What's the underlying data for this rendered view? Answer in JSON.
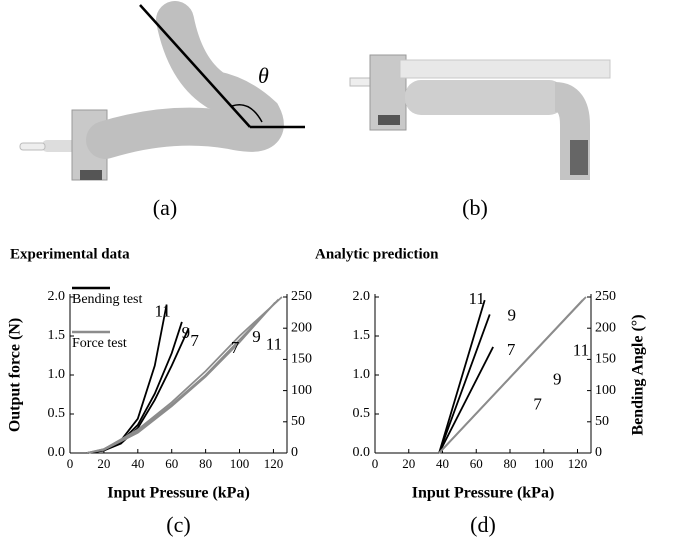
{
  "photos": [
    {
      "label": "(a)"
    },
    {
      "label": "(b)"
    }
  ],
  "theta": "θ",
  "chart_data": [
    {
      "type": "line",
      "title": "Experimental data",
      "panel_label": "(c)",
      "xlabel": "Input Pressure (kPa)",
      "ylabel": "Output force (N)",
      "xlim": [
        0,
        128
      ],
      "xticks": [
        0,
        20,
        40,
        60,
        80,
        100,
        120
      ],
      "ylim": [
        0,
        2
      ],
      "yticks": [
        {
          "value": 0,
          "label": "0.0"
        },
        {
          "value": 0.5,
          "label": "0.5"
        },
        {
          "value": 1,
          "label": "1.0"
        },
        {
          "value": 1.5,
          "label": "1.5"
        },
        {
          "value": 2,
          "label": "2.0"
        }
      ],
      "y2lim": [
        0,
        250
      ],
      "y2ticks": [
        0,
        50,
        100,
        150,
        200,
        250
      ],
      "legend": [
        {
          "label": "Bending test",
          "color": "#000000"
        },
        {
          "label": "Force test",
          "color": "#8c8c8c"
        }
      ],
      "series": [
        {
          "name": "11",
          "color": "#000000",
          "axis": "y2",
          "x": [
            10,
            20,
            30,
            40,
            50,
            57
          ],
          "values": [
            0,
            5,
            20,
            55,
            140,
            238
          ]
        },
        {
          "name": "9",
          "color": "#000000",
          "axis": "y2",
          "x": [
            10,
            20,
            30,
            40,
            50,
            60,
            66
          ],
          "values": [
            0,
            4,
            18,
            45,
            95,
            160,
            210
          ]
        },
        {
          "name": "7",
          "color": "#000000",
          "axis": "y2",
          "x": [
            10,
            20,
            30,
            40,
            50,
            60,
            70
          ],
          "values": [
            0,
            4,
            15,
            40,
            85,
            140,
            200
          ]
        },
        {
          "name": "11",
          "color": "#8c8c8c",
          "x": [
            10,
            20,
            40,
            60,
            80,
            100,
            125
          ],
          "values": [
            0,
            0.05,
            0.3,
            0.65,
            1.05,
            1.5,
            2.0
          ]
        },
        {
          "name": "9",
          "color": "#8c8c8c",
          "x": [
            10,
            20,
            40,
            60,
            80,
            100,
            123
          ],
          "values": [
            0,
            0.05,
            0.28,
            0.62,
            1.0,
            1.45,
            1.97
          ]
        },
        {
          "name": "7",
          "color": "#8c8c8c",
          "x": [
            10,
            20,
            40,
            60,
            80,
            100,
            121
          ],
          "values": [
            0,
            0.04,
            0.26,
            0.6,
            0.98,
            1.42,
            1.93
          ]
        }
      ]
    },
    {
      "type": "line",
      "title": "Analytic prediction",
      "panel_label": "(d)",
      "xlabel": "Input Pressure (kPa)",
      "y2label": "Bending Angle (°)",
      "xlim": [
        0,
        128
      ],
      "xticks": [
        0,
        20,
        40,
        60,
        80,
        100,
        120
      ],
      "ylim": [
        0,
        2
      ],
      "yticks": [
        {
          "value": 0,
          "label": "0.0"
        },
        {
          "value": 0.5,
          "label": "0.5"
        },
        {
          "value": 1,
          "label": "1.0"
        },
        {
          "value": 1.5,
          "label": "1.5"
        },
        {
          "value": 2,
          "label": "2.0"
        }
      ],
      "y2lim": [
        0,
        250
      ],
      "y2ticks": [
        0,
        50,
        100,
        150,
        200,
        250
      ],
      "series": [
        {
          "name": "11",
          "color": "#000000",
          "axis": "y2",
          "x": [
            38,
            65
          ],
          "values": [
            0,
            245
          ]
        },
        {
          "name": "9",
          "color": "#000000",
          "axis": "y2",
          "x": [
            38,
            68
          ],
          "values": [
            0,
            222
          ]
        },
        {
          "name": "7",
          "color": "#000000",
          "axis": "y2",
          "x": [
            38,
            70
          ],
          "values": [
            0,
            170
          ]
        },
        {
          "name": "11",
          "color": "#8c8c8c",
          "x": [
            38,
            125
          ],
          "values": [
            0,
            2.0
          ]
        },
        {
          "name": "9",
          "color": "#8c8c8c",
          "x": [
            38,
            124
          ],
          "values": [
            0,
            1.98
          ]
        },
        {
          "name": "7",
          "color": "#8c8c8c",
          "x": [
            38,
            123
          ],
          "values": [
            0,
            1.96
          ]
        }
      ]
    }
  ]
}
